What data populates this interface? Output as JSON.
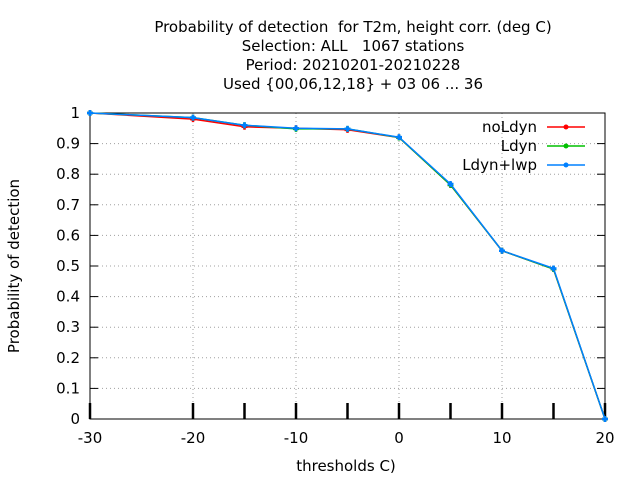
{
  "chart_data": {
    "type": "line",
    "title_lines": [
      "Probability of detection  for T2m, height corr. (deg C)",
      "Selection: ALL   1067 stations",
      "Period: 20210201-20210228",
      "Used {00,06,12,18} + 03 06 ... 36"
    ],
    "xlabel": "thresholds C)",
    "ylabel": "Probability of detection",
    "xlim": [
      -30,
      20
    ],
    "ylim": [
      0,
      1
    ],
    "xticks": [
      -30,
      -20,
      -10,
      0,
      10,
      20
    ],
    "xtick_labels": [
      "-30",
      "-20",
      "-10",
      "0",
      "10",
      "20"
    ],
    "yticks": [
      0,
      0.1,
      0.2,
      0.3,
      0.4,
      0.5,
      0.6,
      0.7,
      0.8,
      0.9,
      1
    ],
    "ytick_labels": [
      "0",
      "0.1",
      "0.2",
      "0.3",
      "0.4",
      "0.5",
      "0.6",
      "0.7",
      "0.8",
      "0.9",
      "1"
    ],
    "grid": true,
    "legend_position": "top-right",
    "x": [
      -30,
      -20,
      -15,
      -10,
      -5,
      0,
      5,
      10,
      15,
      20
    ],
    "series": [
      {
        "name": "noLdyn",
        "color": "#ff0000",
        "values": [
          1.0,
          0.98,
          0.955,
          0.95,
          0.945,
          0.92,
          0.765,
          0.55,
          0.49,
          0.0
        ]
      },
      {
        "name": "Ldyn",
        "color": "#00c000",
        "values": [
          1.0,
          0.985,
          0.96,
          0.948,
          0.948,
          0.92,
          0.765,
          0.55,
          0.49,
          0.0
        ]
      },
      {
        "name": "Ldyn+lwp",
        "color": "#0080ff",
        "values": [
          1.0,
          0.985,
          0.96,
          0.95,
          0.948,
          0.921,
          0.768,
          0.55,
          0.492,
          0.0
        ]
      }
    ],
    "data_ticks_x": [
      -30,
      -20,
      -15,
      -10,
      -5,
      0,
      5,
      10,
      15,
      20
    ]
  }
}
